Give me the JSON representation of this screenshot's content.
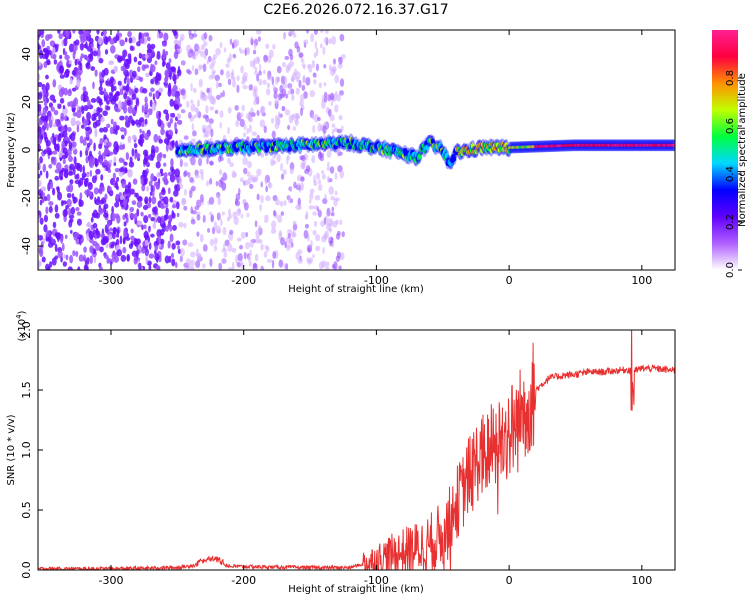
{
  "title": "C2E6.2026.072.16.37.G17",
  "chart_data": [
    {
      "type": "heatmap",
      "xlabel": "Height of straight line (km)",
      "ylabel": "Frequency (Hz)",
      "xlim": [
        -355,
        125
      ],
      "ylim": [
        -50,
        50
      ],
      "x_ticks": [
        -300,
        -200,
        -100,
        0,
        100
      ],
      "y_ticks": [
        -40,
        -20,
        0,
        20,
        40
      ],
      "colorbar": {
        "label": "Normalized spectral amplitude",
        "range": [
          0,
          1
        ],
        "ticks": [
          "0.0",
          "0.2",
          "0.4",
          "0.6",
          "0.8"
        ],
        "colors": [
          "#ffffff",
          "#b060ff",
          "#6000ff",
          "#0000ff",
          "#00d8ff",
          "#00ff40",
          "#c0ff00",
          "#ff9000",
          "#ff0040",
          "#ff2090"
        ]
      },
      "signal_track": {
        "x": [
          -250,
          -200,
          -160,
          -120,
          -90,
          -70,
          -60,
          -50,
          -45,
          -40,
          -30,
          -20,
          0,
          50,
          100,
          125
        ],
        "y": [
          0,
          1,
          2,
          3,
          0,
          -3,
          3,
          0,
          -6,
          -1,
          0,
          1,
          1,
          2,
          2,
          2
        ]
      },
      "noise_region": {
        "x_start": -355,
        "x_end": -125,
        "dense_until": -248
      },
      "grid": false
    },
    {
      "type": "line",
      "xlabel": "Height of straight line (km)",
      "ylabel": "SNR (10 * v/v)",
      "multiplier": "(x10",
      "multiplier_exp": "4",
      "xlim": [
        -355,
        125
      ],
      "ylim": [
        0,
        2.0
      ],
      "x_ticks": [
        -300,
        -200,
        -100,
        0,
        100
      ],
      "y_ticks": [
        "0.0",
        "0.5",
        "1.0",
        "1.5",
        "2.0"
      ],
      "series": [
        {
          "color": "#e83030",
          "x": [
            -355,
            -300,
            -250,
            -230,
            -225,
            -210,
            -150,
            -120,
            -100,
            -90,
            -80,
            -70,
            -60,
            -50,
            -45,
            -40,
            -35,
            -30,
            -25,
            -20,
            -15,
            -10,
            -5,
            0,
            5,
            10,
            15,
            20,
            25,
            30,
            40,
            50,
            60,
            70,
            80,
            90,
            95,
            100,
            110,
            125
          ],
          "y": [
            0.01,
            0.01,
            0.02,
            0.05,
            0.08,
            0.03,
            0.02,
            0.02,
            0.08,
            0.12,
            0.15,
            0.18,
            0.22,
            0.3,
            0.4,
            0.55,
            0.65,
            0.8,
            0.9,
            0.95,
            1.0,
            1.05,
            1.1,
            1.15,
            1.2,
            1.3,
            1.4,
            1.5,
            1.55,
            1.6,
            1.62,
            1.63,
            1.65,
            1.65,
            1.66,
            1.67,
            1.66,
            1.68,
            1.68,
            1.66
          ]
        }
      ],
      "grid": false
    }
  ]
}
